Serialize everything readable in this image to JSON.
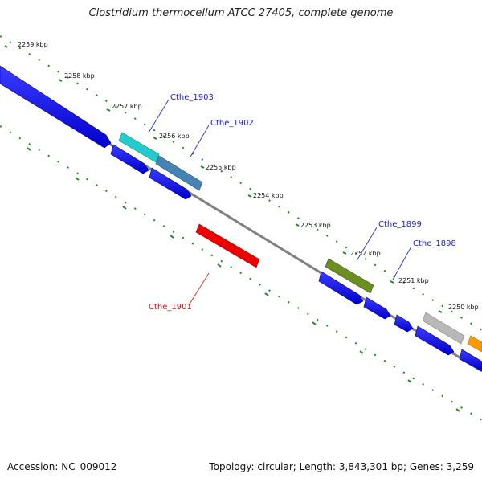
{
  "header": {
    "title": "Clostridium thermocellum ATCC 27405, complete genome"
  },
  "footer": {
    "accession": "Accession: NC_009012",
    "summary": "Topology: circular; Length: 3,843,301 bp; Genes: 3,259"
  },
  "ruler": {
    "ticks": [
      "2259 kbp",
      "2258 kbp",
      "2257 kbp",
      "2256 kbp",
      "2255 kbp",
      "2254 kbp",
      "2253 kbp",
      "2252 kbp",
      "2251 kbp",
      "2250 kbp"
    ]
  },
  "gene_labels": [
    {
      "text": "Cthe_1903",
      "color": "#1a1acc"
    },
    {
      "text": "Cthe_1902",
      "color": "#1a1acc"
    },
    {
      "text": "Cthe_1901",
      "color": "#cc1111"
    },
    {
      "text": "Cthe_1899",
      "color": "#1a1acc"
    },
    {
      "text": "Cthe_1898",
      "color": "#1a1acc"
    }
  ],
  "colors": {
    "forward_gene": "#0000ee",
    "cyan_gene": "#22cccc",
    "steel_gene": "#4682b4",
    "red_gene": "#ee0000",
    "olive_gene": "#6b8e23",
    "gray_gene": "#b8b8b8",
    "orange_gene": "#ff9900",
    "backbone": "#808080",
    "tick_marks": "#1a8a1a"
  }
}
